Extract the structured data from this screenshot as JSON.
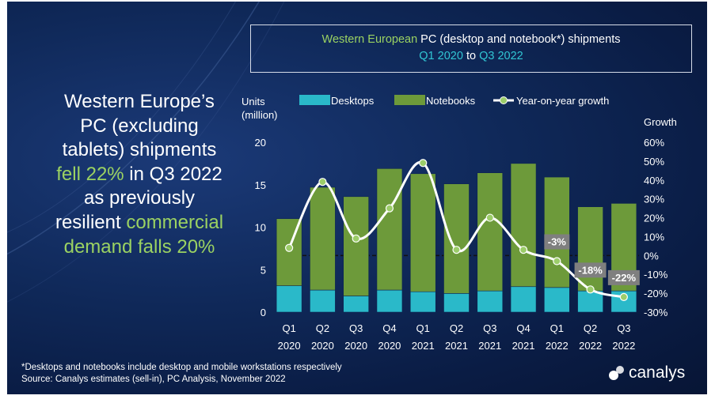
{
  "headline": {
    "line1": "Western Europe’s",
    "line2": "PC (excluding",
    "line3": "tablets) shipments",
    "line4_highlight": "fell 22%",
    "line4_rest": " in Q3 2022",
    "line5": "as previously",
    "line6_plain": "resilient ",
    "line6_highlight": "commercial",
    "line7": "demand falls 20%"
  },
  "title": {
    "part1": "Western European",
    "part2": " PC (desktop and notebook*) shipments",
    "part3": "Q1 2020",
    "part4": " to ",
    "part5": "Q3 2022"
  },
  "footnote": {
    "line1": "*Desktops and notebooks include desktop and mobile workstations respectively",
    "line2": "Source: Canalys estimates (sell-in), PC Analysis, November 2022"
  },
  "logo": {
    "text": "canalys"
  },
  "colors": {
    "desktops": "#2ab9c9",
    "notebooks": "#6d9a3a",
    "growth_line": "#ffffff",
    "growth_marker": "#9ccd6a",
    "callout_bg": "#7f7f7f"
  },
  "chart_data": {
    "type": "bar",
    "stacked": true,
    "categories": [
      [
        "Q1",
        "2020"
      ],
      [
        "Q2",
        "2020"
      ],
      [
        "Q3",
        "2020"
      ],
      [
        "Q4",
        "2020"
      ],
      [
        "Q1",
        "2021"
      ],
      [
        "Q2",
        "2021"
      ],
      [
        "Q3",
        "2021"
      ],
      [
        "Q4",
        "2021"
      ],
      [
        "Q1",
        "2022"
      ],
      [
        "Q2",
        "2022"
      ],
      [
        "Q3",
        "2022"
      ]
    ],
    "series": [
      {
        "name": "Desktops",
        "axis": "left",
        "values": [
          3.1,
          2.6,
          1.9,
          2.6,
          2.4,
          2.2,
          2.5,
          3.0,
          2.9,
          2.5,
          2.5
        ]
      },
      {
        "name": "Notebooks",
        "axis": "left",
        "values": [
          7.9,
          12.1,
          11.7,
          14.3,
          13.9,
          12.9,
          13.9,
          14.5,
          13.0,
          9.9,
          10.3
        ]
      },
      {
        "name": "Year-on-year growth",
        "axis": "right",
        "type": "line",
        "values": [
          4,
          39,
          9,
          25,
          49,
          3,
          20,
          3,
          -3,
          -18,
          -22
        ]
      }
    ],
    "left_axis": {
      "label_line1": "Units",
      "label_line2": "(million)",
      "ylim": [
        0,
        20
      ],
      "ticks": [
        "0",
        "5",
        "10",
        "15",
        "20"
      ]
    },
    "right_axis": {
      "label": "Growth",
      "ylim": [
        -30,
        60
      ],
      "ticks": [
        "-30%",
        "-20%",
        "-10%",
        "0%",
        "10%",
        "20%",
        "30%",
        "40%",
        "50%",
        "60%"
      ]
    },
    "callouts": [
      {
        "index": 8,
        "text": "-3%"
      },
      {
        "index": 9,
        "text": "-18%"
      },
      {
        "index": 10,
        "text": "-22%"
      }
    ],
    "zero_growth_line": "dashed",
    "legend_position": "top"
  }
}
